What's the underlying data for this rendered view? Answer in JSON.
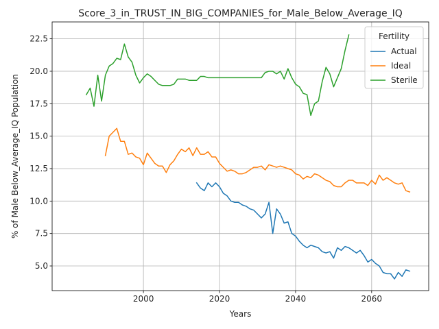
{
  "chart_data": {
    "type": "line",
    "title": "Score_3_in_TRUST_IN_BIG_COMPANIES_for_Male_Below_Average_IQ",
    "xlabel": "Years",
    "ylabel": "% of Male Below_Average_IQ Population",
    "xlim": [
      1976,
      2075
    ],
    "ylim": [
      3.1,
      23.8
    ],
    "xticks": [
      2000,
      2020,
      2040,
      2060
    ],
    "yticks": [
      5.0,
      7.5,
      10.0,
      12.5,
      15.0,
      17.5,
      20.0,
      22.5
    ],
    "grid": true,
    "legend": {
      "title": "Fertility",
      "placement": "top-right"
    },
    "series": [
      {
        "name": "Actual",
        "color": "#1f77b4",
        "x": [
          2014,
          2015,
          2016,
          2017,
          2018,
          2019,
          2020,
          2021,
          2022,
          2023,
          2024,
          2025,
          2026,
          2027,
          2028,
          2029,
          2030,
          2031,
          2032,
          2033,
          2034,
          2035,
          2036,
          2037,
          2038,
          2039,
          2040,
          2041,
          2042,
          2043,
          2044,
          2045,
          2046,
          2047,
          2048,
          2049,
          2050,
          2051,
          2052,
          2053,
          2054,
          2055,
          2056,
          2057,
          2058,
          2059,
          2060,
          2061,
          2062,
          2063,
          2064,
          2065,
          2066,
          2067,
          2068,
          2069,
          2070
        ],
        "y": [
          11.4,
          11.0,
          10.8,
          11.4,
          11.1,
          11.4,
          11.1,
          10.6,
          10.4,
          10.0,
          9.9,
          9.9,
          9.7,
          9.6,
          9.4,
          9.3,
          9.0,
          8.7,
          9.0,
          9.9,
          7.5,
          9.4,
          9.0,
          8.3,
          8.4,
          7.5,
          7.3,
          6.9,
          6.6,
          6.4,
          6.6,
          6.5,
          6.4,
          6.1,
          6.0,
          6.1,
          5.6,
          6.4,
          6.2,
          6.5,
          6.4,
          6.2,
          6.0,
          6.2,
          5.8,
          5.3,
          5.5,
          5.2,
          5.0,
          4.5,
          4.4,
          4.4,
          4.0,
          4.5,
          4.2,
          4.7,
          4.6
        ]
      },
      {
        "name": "Ideal",
        "color": "#ff7f0e",
        "x": [
          1990,
          1991,
          1992,
          1993,
          1994,
          1995,
          1996,
          1997,
          1998,
          1999,
          2000,
          2001,
          2002,
          2003,
          2004,
          2005,
          2006,
          2007,
          2008,
          2009,
          2010,
          2011,
          2012,
          2013,
          2014,
          2015,
          2016,
          2017,
          2018,
          2019,
          2020,
          2021,
          2022,
          2023,
          2024,
          2025,
          2026,
          2027,
          2028,
          2029,
          2030,
          2031,
          2032,
          2033,
          2034,
          2035,
          2036,
          2037,
          2038,
          2039,
          2040,
          2041,
          2042,
          2043,
          2044,
          2045,
          2046,
          2047,
          2048,
          2049,
          2050,
          2051,
          2052,
          2053,
          2054,
          2055,
          2056,
          2057,
          2058,
          2059,
          2060,
          2061,
          2062,
          2063,
          2064,
          2065,
          2066,
          2067,
          2068,
          2069,
          2070
        ],
        "y": [
          13.5,
          15.0,
          15.3,
          15.6,
          14.6,
          14.6,
          13.6,
          13.7,
          13.4,
          13.3,
          12.8,
          13.7,
          13.3,
          12.9,
          12.7,
          12.7,
          12.2,
          12.8,
          13.1,
          13.6,
          14.0,
          13.8,
          14.1,
          13.5,
          14.1,
          13.6,
          13.6,
          13.8,
          13.4,
          13.4,
          12.9,
          12.6,
          12.3,
          12.4,
          12.3,
          12.1,
          12.1,
          12.2,
          12.4,
          12.6,
          12.6,
          12.7,
          12.4,
          12.8,
          12.7,
          12.6,
          12.7,
          12.6,
          12.5,
          12.4,
          12.1,
          12.0,
          11.7,
          11.9,
          11.8,
          12.1,
          12.0,
          11.8,
          11.6,
          11.5,
          11.2,
          11.1,
          11.1,
          11.4,
          11.6,
          11.6,
          11.4,
          11.4,
          11.4,
          11.2,
          11.6,
          11.3,
          12.0,
          11.6,
          11.8,
          11.6,
          11.4,
          11.3,
          11.4,
          10.8,
          10.7
        ]
      },
      {
        "name": "Sterile",
        "color": "#2ca02c",
        "x": [
          1985,
          1986,
          1987,
          1988,
          1989,
          1990,
          1991,
          1992,
          1993,
          1994,
          1995,
          1996,
          1997,
          1998,
          1999,
          2000,
          2001,
          2002,
          2003,
          2004,
          2005,
          2006,
          2007,
          2008,
          2009,
          2010,
          2011,
          2012,
          2013,
          2014,
          2015,
          2016,
          2017,
          2018,
          2019,
          2020,
          2021,
          2022,
          2023,
          2024,
          2025,
          2026,
          2027,
          2028,
          2029,
          2030,
          2031,
          2032,
          2033,
          2034,
          2035,
          2036,
          2037,
          2038,
          2039,
          2040,
          2041,
          2042,
          2043,
          2044,
          2045,
          2046,
          2047,
          2048,
          2049,
          2050,
          2051,
          2052,
          2053,
          2054
        ],
        "y": [
          18.2,
          18.7,
          17.3,
          19.7,
          17.7,
          19.7,
          20.4,
          20.6,
          21.0,
          20.9,
          22.1,
          21.1,
          20.7,
          19.7,
          19.1,
          19.5,
          19.8,
          19.6,
          19.3,
          19.0,
          18.9,
          18.9,
          18.9,
          19.0,
          19.4,
          19.4,
          19.4,
          19.3,
          19.3,
          19.3,
          19.6,
          19.6,
          19.5,
          19.5,
          19.5,
          19.5,
          19.5,
          19.5,
          19.5,
          19.5,
          19.5,
          19.5,
          19.5,
          19.5,
          19.5,
          19.5,
          19.5,
          19.9,
          20.0,
          20.0,
          19.8,
          20.0,
          19.4,
          20.2,
          19.5,
          19.0,
          18.8,
          18.3,
          18.2,
          16.6,
          17.5,
          17.7,
          19.2,
          20.3,
          19.8,
          18.8,
          19.5,
          20.2,
          21.6,
          22.8
        ]
      }
    ]
  }
}
